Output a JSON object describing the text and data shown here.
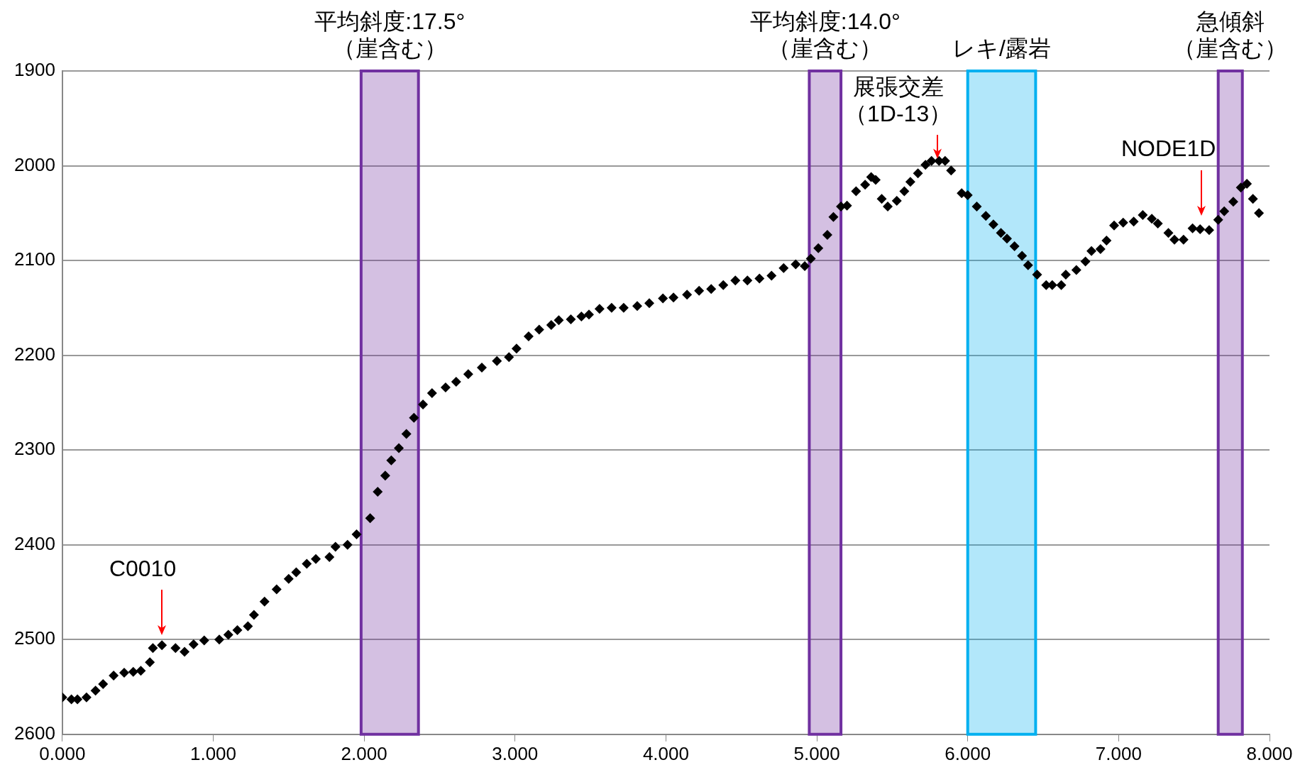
{
  "chart_data": {
    "type": "scatter",
    "marker": "diamond",
    "grid": "y",
    "legend": false,
    "xlim": [
      0,
      8
    ],
    "xticks": [
      {
        "value": 0,
        "label": "0.000"
      },
      {
        "value": 1,
        "label": "1.000"
      },
      {
        "value": 2,
        "label": "2.000"
      },
      {
        "value": 3,
        "label": "3.000"
      },
      {
        "value": 4,
        "label": "4.000"
      },
      {
        "value": 5,
        "label": "5.000"
      },
      {
        "value": 6,
        "label": "6.000"
      },
      {
        "value": 7,
        "label": "7.000"
      },
      {
        "value": 8,
        "label": "8.000"
      }
    ],
    "ylim": [
      2600,
      1900
    ],
    "yticks": [
      1900,
      2000,
      2100,
      2200,
      2300,
      2400,
      2500,
      2600
    ],
    "series": [
      {
        "color": "#000000",
        "x": [
          0.0,
          0.06,
          0.1,
          0.16,
          0.22,
          0.27,
          0.34,
          0.41,
          0.47,
          0.52,
          0.58,
          0.6,
          0.66,
          0.75,
          0.81,
          0.87,
          0.94,
          1.04,
          1.1,
          1.16,
          1.23,
          1.27,
          1.34,
          1.42,
          1.5,
          1.55,
          1.62,
          1.68,
          1.77,
          1.81,
          1.89,
          1.95,
          2.04,
          2.09,
          2.14,
          2.18,
          2.23,
          2.28,
          2.33,
          2.39,
          2.45,
          2.54,
          2.61,
          2.69,
          2.78,
          2.88,
          2.96,
          3.01,
          3.09,
          3.16,
          3.24,
          3.29,
          3.37,
          3.44,
          3.49,
          3.56,
          3.64,
          3.72,
          3.81,
          3.89,
          3.98,
          4.05,
          4.14,
          4.22,
          4.3,
          4.38,
          4.46,
          4.54,
          4.62,
          4.7,
          4.78,
          4.86,
          4.92,
          4.96,
          5.01,
          5.07,
          5.11,
          5.16,
          5.2,
          5.26,
          5.32,
          5.36,
          5.39,
          5.43,
          5.47,
          5.53,
          5.58,
          5.62,
          5.67,
          5.72,
          5.76,
          5.81,
          5.85,
          5.89,
          5.96,
          6.0,
          6.06,
          6.12,
          6.17,
          6.22,
          6.26,
          6.31,
          6.36,
          6.4,
          6.46,
          6.52,
          6.56,
          6.62,
          6.65,
          6.72,
          6.78,
          6.82,
          6.88,
          6.92,
          6.97,
          7.03,
          7.1,
          7.16,
          7.22,
          7.26,
          7.33,
          7.37,
          7.43,
          7.49,
          7.54,
          7.6,
          7.66,
          7.7,
          7.76,
          7.81,
          7.85,
          7.89,
          7.93
        ],
        "values": [
          2561,
          2563,
          2563,
          2561,
          2554,
          2547,
          2538,
          2535,
          2534,
          2533,
          2524,
          2509,
          2506,
          2509,
          2513,
          2505,
          2501,
          2500,
          2495,
          2490,
          2486,
          2474,
          2460,
          2447,
          2436,
          2429,
          2420,
          2415,
          2413,
          2402,
          2400,
          2389,
          2372,
          2344,
          2327,
          2311,
          2298,
          2283,
          2266,
          2252,
          2240,
          2234,
          2228,
          2220,
          2213,
          2206,
          2202,
          2193,
          2180,
          2173,
          2168,
          2163,
          2162,
          2159,
          2157,
          2151,
          2150,
          2150,
          2148,
          2145,
          2140,
          2139,
          2136,
          2132,
          2130,
          2126,
          2121,
          2121,
          2119,
          2116,
          2108,
          2104,
          2106,
          2098,
          2087,
          2073,
          2054,
          2043,
          2042,
          2027,
          2020,
          2012,
          2015,
          2035,
          2043,
          2037,
          2027,
          2017,
          2008,
          1999,
          1995,
          1995,
          1995,
          2005,
          2029,
          2031,
          2043,
          2053,
          2062,
          2071,
          2077,
          2085,
          2095,
          2105,
          2115,
          2126,
          2126,
          2126,
          2115,
          2110,
          2101,
          2090,
          2088,
          2079,
          2063,
          2060,
          2059,
          2052,
          2056,
          2061,
          2071,
          2078,
          2078,
          2066,
          2067,
          2068,
          2057,
          2048,
          2038,
          2023,
          2019,
          2035,
          2050
        ]
      }
    ],
    "bands": [
      {
        "axis": "x",
        "from": 1.98,
        "to": 2.36,
        "label": "平均斜度:17.5°（崖含む）",
        "color": "#7030a0"
      },
      {
        "axis": "x",
        "from": 4.95,
        "to": 5.16,
        "label": "平均斜度:14.0°（崖含む）",
        "color": "#7030a0"
      },
      {
        "axis": "x",
        "from": 6.0,
        "to": 6.45,
        "label": "レキ/露岩",
        "color": "#00b0f0"
      },
      {
        "axis": "x",
        "from": 7.66,
        "to": 7.82,
        "label": "急傾斜（崖含む）",
        "color": "#7030a0"
      }
    ],
    "annotations": [
      {
        "text": "C0010",
        "x": 0.66,
        "y": 2503
      },
      {
        "text": "展張交差（1D-13）",
        "x": 5.8,
        "y": 2000
      },
      {
        "text": "NODE1D",
        "x": 7.55,
        "y": 2060
      }
    ]
  }
}
